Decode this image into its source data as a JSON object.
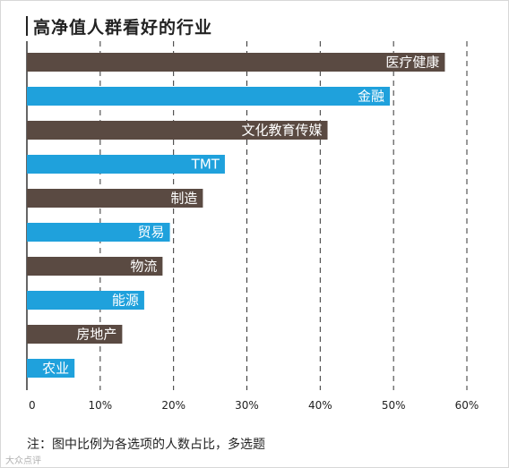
{
  "title": "高净值人群看好的行业",
  "note": "注：图中比例为各选项的人数占比，多选题",
  "watermark": "大众点评",
  "chart_data": {
    "type": "bar",
    "orientation": "horizontal",
    "title": "高净值人群看好的行业",
    "categories": [
      "医疗健康",
      "金融",
      "文化教育传媒",
      "TMT",
      "制造",
      "贸易",
      "物流",
      "能源",
      "房地产",
      "农业"
    ],
    "values": [
      57,
      49.5,
      41,
      27,
      24,
      19.5,
      18.5,
      16,
      13,
      6.5
    ],
    "xlim": [
      0,
      60
    ],
    "xticks": [
      "0",
      "10%",
      "20%",
      "30%",
      "40%",
      "50%",
      "60%"
    ],
    "grid": "vertical-dashed",
    "colors": [
      "#5a4a42",
      "#1fa1dc",
      "#5a4a42",
      "#1fa1dc",
      "#5a4a42",
      "#1fa1dc",
      "#5a4a42",
      "#1fa1dc",
      "#5a4a42",
      "#1fa1dc"
    ],
    "label_color": "#ffffff"
  }
}
